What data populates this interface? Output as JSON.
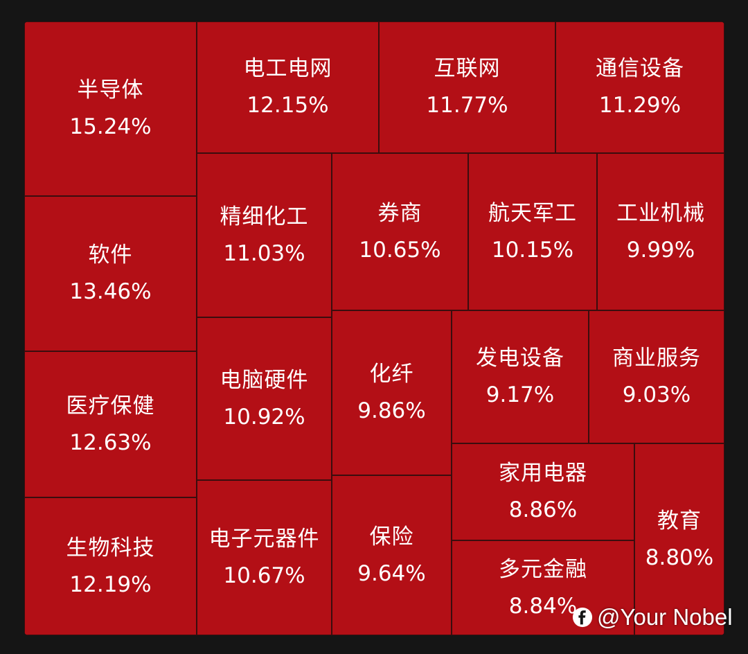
{
  "chart_data": {
    "type": "treemap",
    "color": "#b30f16",
    "border_color": "#3a0d0e",
    "cells": [
      {
        "label": "半导体",
        "value": "15.24%"
      },
      {
        "label": "电工电网",
        "value": "12.15%"
      },
      {
        "label": "互联网",
        "value": "11.77%"
      },
      {
        "label": "通信设备",
        "value": "11.29%"
      },
      {
        "label": "软件",
        "value": "13.46%"
      },
      {
        "label": "精细化工",
        "value": "11.03%"
      },
      {
        "label": "券商",
        "value": "10.65%"
      },
      {
        "label": "航天军工",
        "value": "10.15%"
      },
      {
        "label": "工业机械",
        "value": "9.99%"
      },
      {
        "label": "医疗保健",
        "value": "12.63%"
      },
      {
        "label": "电脑硬件",
        "value": "10.92%"
      },
      {
        "label": "化纤",
        "value": "9.86%"
      },
      {
        "label": "发电设备",
        "value": "9.17%"
      },
      {
        "label": "商业服务",
        "value": "9.03%"
      },
      {
        "label": "生物科技",
        "value": "12.19%"
      },
      {
        "label": "电子元器件",
        "value": "10.67%"
      },
      {
        "label": "保险",
        "value": "9.64%"
      },
      {
        "label": "家用电器",
        "value": "8.86%"
      },
      {
        "label": "多元金融",
        "value": "8.84%"
      },
      {
        "label": "教育",
        "value": "8.80%"
      }
    ]
  },
  "watermark": {
    "text": "@Your Nobel",
    "icon": "facebook-f-icon"
  }
}
